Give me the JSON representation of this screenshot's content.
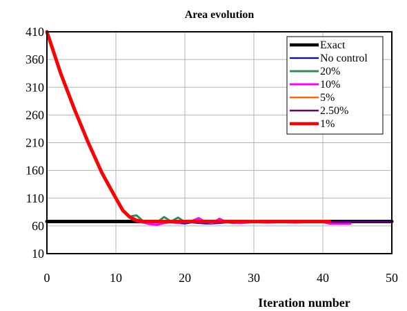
{
  "chart_data": {
    "type": "line",
    "title": "Area evolution",
    "xlabel": "Iteration number",
    "ylabel": "",
    "xlim": [
      0,
      50
    ],
    "ylim": [
      10,
      410
    ],
    "x_ticks": [
      0,
      10,
      20,
      30,
      40,
      50
    ],
    "y_ticks": [
      10,
      60,
      110,
      160,
      210,
      260,
      310,
      360,
      410
    ],
    "grid": true,
    "legend_position": "top-right",
    "series": [
      {
        "name": "Exact",
        "color": "#000000",
        "points": [
          [
            0,
            68
          ],
          [
            50,
            68
          ]
        ]
      },
      {
        "name": "No control",
        "color": "#0000ff",
        "points": [
          [
            0,
            410
          ],
          [
            2,
            335
          ],
          [
            4,
            270
          ],
          [
            6,
            210
          ],
          [
            8,
            155
          ],
          [
            10,
            110
          ],
          [
            11,
            88
          ],
          [
            12,
            76
          ],
          [
            13,
            70
          ],
          [
            14,
            68
          ],
          [
            15,
            67
          ],
          [
            16,
            66
          ],
          [
            17,
            67
          ],
          [
            18,
            66
          ],
          [
            19,
            65
          ],
          [
            20,
            64
          ],
          [
            21,
            66
          ],
          [
            22,
            65
          ],
          [
            23,
            64
          ],
          [
            24,
            64
          ],
          [
            25,
            65
          ],
          [
            26,
            66
          ],
          [
            28,
            66
          ],
          [
            30,
            67
          ],
          [
            32,
            67
          ],
          [
            34,
            67
          ],
          [
            36,
            67
          ],
          [
            38,
            67
          ],
          [
            40,
            67
          ],
          [
            42,
            68
          ],
          [
            44,
            68
          ],
          [
            46,
            68
          ],
          [
            48,
            68
          ],
          [
            50,
            68
          ]
        ]
      },
      {
        "name": "20%",
        "color": "#2e8b57",
        "points": [
          [
            0,
            410
          ],
          [
            2,
            335
          ],
          [
            4,
            270
          ],
          [
            6,
            210
          ],
          [
            8,
            155
          ],
          [
            10,
            110
          ],
          [
            11,
            88
          ],
          [
            12,
            77
          ],
          [
            13,
            79
          ],
          [
            14,
            68
          ],
          [
            15,
            66
          ],
          [
            16,
            67
          ],
          [
            17,
            76
          ],
          [
            18,
            68
          ],
          [
            19,
            75
          ],
          [
            20,
            67
          ],
          [
            21,
            68
          ],
          [
            22,
            70
          ],
          [
            23,
            67
          ],
          [
            24,
            66
          ],
          [
            25,
            68
          ],
          [
            26,
            67
          ],
          [
            27,
            65
          ],
          [
            28,
            66
          ],
          [
            30,
            67
          ],
          [
            32,
            67
          ],
          [
            34,
            67
          ],
          [
            36,
            67
          ],
          [
            38,
            67
          ],
          [
            40,
            67
          ]
        ]
      },
      {
        "name": "10%",
        "color": "#ff00ff",
        "points": [
          [
            0,
            410
          ],
          [
            2,
            335
          ],
          [
            4,
            270
          ],
          [
            6,
            210
          ],
          [
            8,
            155
          ],
          [
            10,
            110
          ],
          [
            11,
            88
          ],
          [
            12,
            75
          ],
          [
            13,
            68
          ],
          [
            14,
            66
          ],
          [
            15,
            63
          ],
          [
            16,
            62
          ],
          [
            17,
            65
          ],
          [
            18,
            67
          ],
          [
            19,
            65
          ],
          [
            20,
            68
          ],
          [
            21,
            69
          ],
          [
            22,
            74
          ],
          [
            23,
            67
          ],
          [
            24,
            65
          ],
          [
            25,
            73
          ],
          [
            26,
            67
          ],
          [
            27,
            66
          ],
          [
            28,
            65
          ],
          [
            30,
            67
          ],
          [
            32,
            66
          ],
          [
            34,
            67
          ],
          [
            36,
            66
          ],
          [
            38,
            67
          ],
          [
            40,
            67
          ],
          [
            41,
            64
          ],
          [
            42,
            64
          ],
          [
            44,
            64
          ]
        ]
      },
      {
        "name": "5%",
        "color": "#ff6600",
        "points": [
          [
            0,
            410
          ],
          [
            2,
            335
          ],
          [
            4,
            270
          ],
          [
            6,
            210
          ],
          [
            8,
            155
          ],
          [
            10,
            110
          ],
          [
            11,
            88
          ],
          [
            12,
            76
          ],
          [
            13,
            70
          ],
          [
            14,
            68
          ],
          [
            16,
            67
          ],
          [
            18,
            67
          ],
          [
            20,
            68
          ],
          [
            22,
            68
          ],
          [
            24,
            68
          ],
          [
            26,
            68
          ],
          [
            28,
            68
          ],
          [
            30,
            68
          ],
          [
            32,
            68
          ],
          [
            34,
            68
          ],
          [
            36,
            68
          ],
          [
            38,
            68
          ],
          [
            40,
            68
          ],
          [
            41,
            68
          ]
        ]
      },
      {
        "name": "2.50%",
        "color": "#660066",
        "points": [
          [
            0,
            410
          ],
          [
            2,
            335
          ],
          [
            4,
            270
          ],
          [
            6,
            210
          ],
          [
            8,
            155
          ],
          [
            10,
            110
          ],
          [
            11,
            88
          ],
          [
            12,
            76
          ],
          [
            13,
            70
          ],
          [
            14,
            68
          ],
          [
            16,
            67
          ],
          [
            18,
            67
          ],
          [
            20,
            68
          ],
          [
            22,
            68
          ],
          [
            24,
            67
          ],
          [
            26,
            68
          ],
          [
            28,
            68
          ],
          [
            30,
            67
          ],
          [
            32,
            68
          ],
          [
            34,
            67
          ],
          [
            36,
            68
          ],
          [
            38,
            67
          ],
          [
            40,
            68
          ],
          [
            42,
            67
          ],
          [
            44,
            67
          ],
          [
            46,
            67
          ],
          [
            48,
            67
          ],
          [
            50,
            67
          ]
        ]
      },
      {
        "name": "1%",
        "color": "#ff0000",
        "points": [
          [
            0,
            410
          ],
          [
            2,
            335
          ],
          [
            4,
            270
          ],
          [
            6,
            210
          ],
          [
            8,
            155
          ],
          [
            10,
            110
          ],
          [
            11,
            88
          ],
          [
            12,
            76
          ],
          [
            13,
            70
          ],
          [
            14,
            68
          ],
          [
            15,
            68
          ],
          [
            16,
            68
          ],
          [
            18,
            68
          ],
          [
            20,
            68
          ],
          [
            22,
            68
          ],
          [
            24,
            68
          ],
          [
            26,
            68
          ],
          [
            28,
            68
          ],
          [
            30,
            68
          ],
          [
            32,
            68
          ],
          [
            34,
            68
          ],
          [
            36,
            68
          ],
          [
            38,
            68
          ],
          [
            40,
            68
          ],
          [
            41,
            68
          ]
        ]
      }
    ]
  }
}
